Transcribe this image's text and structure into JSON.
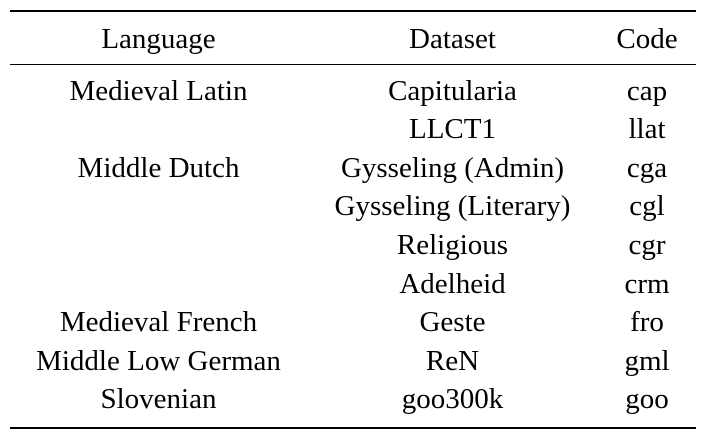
{
  "table": {
    "headers": [
      "Language",
      "Dataset",
      "Code"
    ],
    "rows": [
      [
        "Medieval Latin",
        "Capitularia",
        "cap"
      ],
      [
        "",
        "LLCT1",
        "llat"
      ],
      [
        "Middle Dutch",
        "Gysseling (Admin)",
        "cga"
      ],
      [
        "",
        "Gysseling (Literary)",
        "cgl"
      ],
      [
        "",
        "Religious",
        "cgr"
      ],
      [
        "",
        "Adelheid",
        "crm"
      ],
      [
        "Medieval French",
        "Geste",
        "fro"
      ],
      [
        "Middle Low German",
        "ReN",
        "gml"
      ],
      [
        "Slovenian",
        "goo300k",
        "goo"
      ]
    ]
  }
}
